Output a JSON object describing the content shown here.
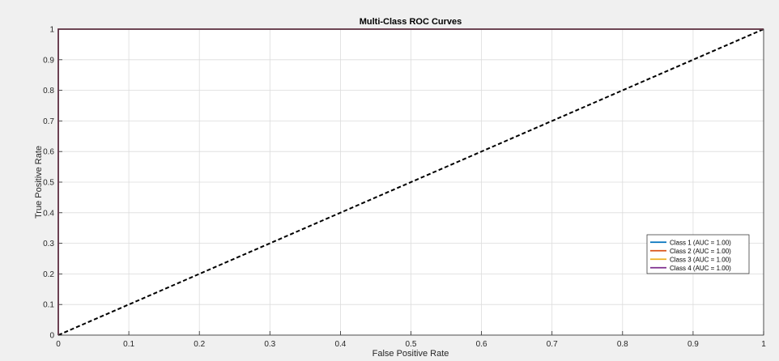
{
  "chart_data": {
    "type": "line",
    "title": "Multi-Class ROC Curves",
    "xlabel": "False Positive Rate",
    "ylabel": "True Positive Rate",
    "xlim": [
      0,
      1
    ],
    "ylim": [
      0,
      1
    ],
    "xticks": [
      "0",
      "0.1",
      "0.2",
      "0.3",
      "0.4",
      "0.5",
      "0.6",
      "0.7",
      "0.8",
      "0.9",
      "1"
    ],
    "yticks": [
      "0",
      "0.1",
      "0.2",
      "0.3",
      "0.4",
      "0.5",
      "0.6",
      "0.7",
      "0.8",
      "0.9",
      "1"
    ],
    "grid": true,
    "legend_position": "bottom-right",
    "series": [
      {
        "name": "Class 1 (AUC = 1.00)",
        "color": "#0072bd",
        "x": [
          0,
          0,
          1
        ],
        "y": [
          0,
          1,
          1
        ]
      },
      {
        "name": "Class 2 (AUC = 1.00)",
        "color": "#d95319",
        "x": [
          0,
          0,
          1
        ],
        "y": [
          0,
          1,
          1
        ]
      },
      {
        "name": "Class 3 (AUC = 1.00)",
        "color": "#edb120",
        "x": [
          0,
          0,
          1
        ],
        "y": [
          0,
          1,
          1
        ]
      },
      {
        "name": "Class 4 (AUC = 1.00)",
        "color": "#7e2f8e",
        "x": [
          0,
          0,
          1
        ],
        "y": [
          0,
          1,
          1
        ]
      }
    ],
    "reference_line": {
      "x": [
        0,
        1
      ],
      "y": [
        0,
        1
      ],
      "color": "#000000",
      "style": "dashed"
    }
  }
}
